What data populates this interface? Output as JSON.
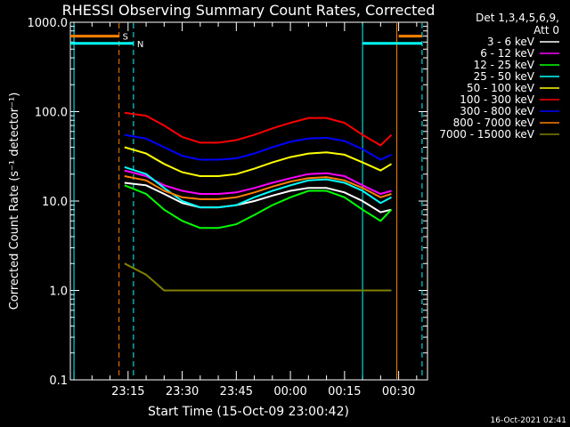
{
  "chart_data": {
    "type": "line",
    "title": "RHESSI Observing Summary Count Rates, Corrected",
    "xlabel": "Start Time (15-Oct-09 23:00:42)",
    "ylabel": "Corrected Count Rate (s⁻¹ detector⁻¹)",
    "yscale": "log",
    "ylim": [
      0.1,
      1000
    ],
    "xlim": [
      "22:59:00",
      "00:38:00"
    ],
    "x_ticks": [
      "23:15",
      "23:30",
      "23:45",
      "00:00",
      "00:15",
      "00:30"
    ],
    "y_ticks": [
      "0.1",
      "1.0",
      "10.0",
      "100.0",
      "1000.0"
    ],
    "legend_header": [
      "Det 1,3,4,5,6,9,",
      "Att 0"
    ],
    "legend_position": "top-right, outside plot",
    "timestamp": "16-Oct-2021 02:41",
    "flags": [
      {
        "label": "S",
        "color": "#ff7f00",
        "y_value": 700,
        "segments": [
          [
            "22:59:00",
            "23:12:30"
          ],
          [
            "00:30:00",
            "00:36:30"
          ]
        ]
      },
      {
        "label": "N",
        "color": "#00ffff",
        "y_value": 580,
        "segments": [
          [
            "22:59:00",
            "23:16:30"
          ],
          [
            "00:20:00",
            "00:36:30"
          ]
        ]
      }
    ],
    "markers": [
      {
        "time": "23:12:30",
        "color": "#ff7f00",
        "style": "dashed"
      },
      {
        "time": "23:16:30",
        "color": "#00ffff",
        "style": "dashed"
      },
      {
        "time": "00:36:30",
        "color": "#00ffff",
        "style": "dashed"
      },
      {
        "time": "23:00:00",
        "color": "#00ffff",
        "style": "solid"
      },
      {
        "time": "00:20:00",
        "color": "#00ffff",
        "style": "solid"
      },
      {
        "time": "00:29:30",
        "color": "#ff7f00",
        "style": "solid"
      }
    ],
    "x": [
      "23:14",
      "23:20",
      "23:25",
      "23:30",
      "23:35",
      "23:40",
      "23:45",
      "23:50",
      "23:55",
      "00:00",
      "00:05",
      "00:10",
      "00:15",
      "00:20",
      "00:25",
      "00:28"
    ],
    "series": [
      {
        "name": "3 - 6 keV",
        "color": "#ffffff",
        "values": [
          16,
          15,
          12,
          9.5,
          8.5,
          8.5,
          9,
          10,
          11.5,
          13,
          14,
          14,
          12.5,
          10,
          7.5,
          8
        ]
      },
      {
        "name": "6 - 12 keV",
        "color": "#ff00ff",
        "values": [
          22,
          19,
          15,
          13,
          12,
          12,
          12.5,
          14,
          16,
          18,
          20,
          20.5,
          19,
          15,
          12,
          13
        ]
      },
      {
        "name": "12 - 25 keV",
        "color": "#00ff00",
        "values": [
          15,
          12,
          8,
          6,
          5,
          5,
          5.5,
          7,
          9,
          11,
          13,
          13,
          11,
          8,
          6,
          8
        ]
      },
      {
        "name": "25 - 50 keV",
        "color": "#00ffff",
        "values": [
          24,
          20,
          14,
          10,
          8.5,
          8.5,
          9,
          11,
          13,
          15,
          17,
          17.5,
          16,
          13,
          9.5,
          11
        ]
      },
      {
        "name": "50 - 100 keV",
        "color": "#ffff00",
        "values": [
          40,
          34,
          26,
          21,
          19,
          19,
          20,
          23,
          27,
          31,
          34,
          35,
          33,
          27,
          22,
          26
        ]
      },
      {
        "name": "100 - 300 keV",
        "color": "#ff0000",
        "values": [
          97,
          90,
          70,
          52,
          45,
          45,
          48,
          55,
          65,
          75,
          85,
          85,
          75,
          55,
          42,
          55
        ]
      },
      {
        "name": "300 - 800 keV",
        "color": "#0000ff",
        "values": [
          55,
          50,
          40,
          32,
          29,
          29,
          30,
          34,
          40,
          46,
          50,
          51,
          47,
          38,
          29,
          33
        ]
      },
      {
        "name": "800 - 7000 keV",
        "color": "#ff7f00",
        "values": [
          19,
          17,
          13,
          11,
          10.5,
          10.5,
          11,
          12.5,
          14.5,
          16.5,
          18,
          18.5,
          17,
          14,
          11,
          12
        ]
      },
      {
        "name": "7000 - 15000 keV",
        "color": "#808000",
        "values": [
          2,
          1.5,
          1,
          1,
          1,
          1,
          1,
          1,
          1,
          1,
          1,
          1,
          1,
          1,
          1,
          1
        ]
      }
    ]
  }
}
